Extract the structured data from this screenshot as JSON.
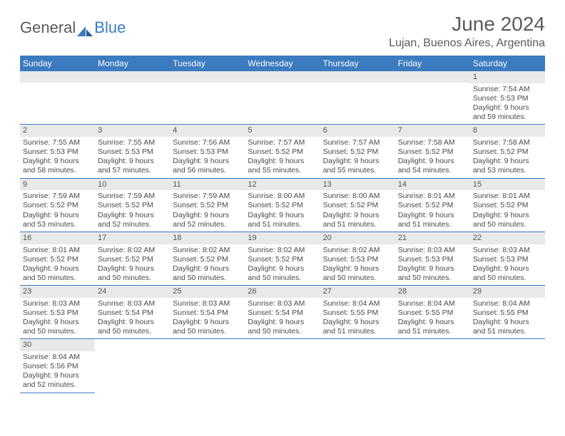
{
  "logo": {
    "text_a": "General",
    "text_b": "Blue"
  },
  "title": "June 2024",
  "location": "Lujan, Buenos Aires, Argentina",
  "colors": {
    "header_bg": "#3b7bbf",
    "header_text": "#ffffff",
    "daynum_bg": "#e8e9ea",
    "week_border": "#3b7bbf",
    "body_text": "#4a4a4a",
    "title_text": "#5a5a5a"
  },
  "weekdays": [
    "Sunday",
    "Monday",
    "Tuesday",
    "Wednesday",
    "Thursday",
    "Friday",
    "Saturday"
  ],
  "weeks": [
    [
      {
        "n": "",
        "sr": "",
        "ss": "",
        "dl": ""
      },
      {
        "n": "",
        "sr": "",
        "ss": "",
        "dl": ""
      },
      {
        "n": "",
        "sr": "",
        "ss": "",
        "dl": ""
      },
      {
        "n": "",
        "sr": "",
        "ss": "",
        "dl": ""
      },
      {
        "n": "",
        "sr": "",
        "ss": "",
        "dl": ""
      },
      {
        "n": "",
        "sr": "",
        "ss": "",
        "dl": ""
      },
      {
        "n": "1",
        "sr": "Sunrise: 7:54 AM",
        "ss": "Sunset: 5:53 PM",
        "dl": "Daylight: 9 hours and 59 minutes."
      }
    ],
    [
      {
        "n": "2",
        "sr": "Sunrise: 7:55 AM",
        "ss": "Sunset: 5:53 PM",
        "dl": "Daylight: 9 hours and 58 minutes."
      },
      {
        "n": "3",
        "sr": "Sunrise: 7:55 AM",
        "ss": "Sunset: 5:53 PM",
        "dl": "Daylight: 9 hours and 57 minutes."
      },
      {
        "n": "4",
        "sr": "Sunrise: 7:56 AM",
        "ss": "Sunset: 5:53 PM",
        "dl": "Daylight: 9 hours and 56 minutes."
      },
      {
        "n": "5",
        "sr": "Sunrise: 7:57 AM",
        "ss": "Sunset: 5:52 PM",
        "dl": "Daylight: 9 hours and 55 minutes."
      },
      {
        "n": "6",
        "sr": "Sunrise: 7:57 AM",
        "ss": "Sunset: 5:52 PM",
        "dl": "Daylight: 9 hours and 55 minutes."
      },
      {
        "n": "7",
        "sr": "Sunrise: 7:58 AM",
        "ss": "Sunset: 5:52 PM",
        "dl": "Daylight: 9 hours and 54 minutes."
      },
      {
        "n": "8",
        "sr": "Sunrise: 7:58 AM",
        "ss": "Sunset: 5:52 PM",
        "dl": "Daylight: 9 hours and 53 minutes."
      }
    ],
    [
      {
        "n": "9",
        "sr": "Sunrise: 7:59 AM",
        "ss": "Sunset: 5:52 PM",
        "dl": "Daylight: 9 hours and 53 minutes."
      },
      {
        "n": "10",
        "sr": "Sunrise: 7:59 AM",
        "ss": "Sunset: 5:52 PM",
        "dl": "Daylight: 9 hours and 52 minutes."
      },
      {
        "n": "11",
        "sr": "Sunrise: 7:59 AM",
        "ss": "Sunset: 5:52 PM",
        "dl": "Daylight: 9 hours and 52 minutes."
      },
      {
        "n": "12",
        "sr": "Sunrise: 8:00 AM",
        "ss": "Sunset: 5:52 PM",
        "dl": "Daylight: 9 hours and 51 minutes."
      },
      {
        "n": "13",
        "sr": "Sunrise: 8:00 AM",
        "ss": "Sunset: 5:52 PM",
        "dl": "Daylight: 9 hours and 51 minutes."
      },
      {
        "n": "14",
        "sr": "Sunrise: 8:01 AM",
        "ss": "Sunset: 5:52 PM",
        "dl": "Daylight: 9 hours and 51 minutes."
      },
      {
        "n": "15",
        "sr": "Sunrise: 8:01 AM",
        "ss": "Sunset: 5:52 PM",
        "dl": "Daylight: 9 hours and 50 minutes."
      }
    ],
    [
      {
        "n": "16",
        "sr": "Sunrise: 8:01 AM",
        "ss": "Sunset: 5:52 PM",
        "dl": "Daylight: 9 hours and 50 minutes."
      },
      {
        "n": "17",
        "sr": "Sunrise: 8:02 AM",
        "ss": "Sunset: 5:52 PM",
        "dl": "Daylight: 9 hours and 50 minutes."
      },
      {
        "n": "18",
        "sr": "Sunrise: 8:02 AM",
        "ss": "Sunset: 5:52 PM",
        "dl": "Daylight: 9 hours and 50 minutes."
      },
      {
        "n": "19",
        "sr": "Sunrise: 8:02 AM",
        "ss": "Sunset: 5:52 PM",
        "dl": "Daylight: 9 hours and 50 minutes."
      },
      {
        "n": "20",
        "sr": "Sunrise: 8:02 AM",
        "ss": "Sunset: 5:53 PM",
        "dl": "Daylight: 9 hours and 50 minutes."
      },
      {
        "n": "21",
        "sr": "Sunrise: 8:03 AM",
        "ss": "Sunset: 5:53 PM",
        "dl": "Daylight: 9 hours and 50 minutes."
      },
      {
        "n": "22",
        "sr": "Sunrise: 8:03 AM",
        "ss": "Sunset: 5:53 PM",
        "dl": "Daylight: 9 hours and 50 minutes."
      }
    ],
    [
      {
        "n": "23",
        "sr": "Sunrise: 8:03 AM",
        "ss": "Sunset: 5:53 PM",
        "dl": "Daylight: 9 hours and 50 minutes."
      },
      {
        "n": "24",
        "sr": "Sunrise: 8:03 AM",
        "ss": "Sunset: 5:54 PM",
        "dl": "Daylight: 9 hours and 50 minutes."
      },
      {
        "n": "25",
        "sr": "Sunrise: 8:03 AM",
        "ss": "Sunset: 5:54 PM",
        "dl": "Daylight: 9 hours and 50 minutes."
      },
      {
        "n": "26",
        "sr": "Sunrise: 8:03 AM",
        "ss": "Sunset: 5:54 PM",
        "dl": "Daylight: 9 hours and 50 minutes."
      },
      {
        "n": "27",
        "sr": "Sunrise: 8:04 AM",
        "ss": "Sunset: 5:55 PM",
        "dl": "Daylight: 9 hours and 51 minutes."
      },
      {
        "n": "28",
        "sr": "Sunrise: 8:04 AM",
        "ss": "Sunset: 5:55 PM",
        "dl": "Daylight: 9 hours and 51 minutes."
      },
      {
        "n": "29",
        "sr": "Sunrise: 8:04 AM",
        "ss": "Sunset: 5:55 PM",
        "dl": "Daylight: 9 hours and 51 minutes."
      }
    ],
    [
      {
        "n": "30",
        "sr": "Sunrise: 8:04 AM",
        "ss": "Sunset: 5:56 PM",
        "dl": "Daylight: 9 hours and 52 minutes."
      },
      {
        "n": "",
        "sr": "",
        "ss": "",
        "dl": ""
      },
      {
        "n": "",
        "sr": "",
        "ss": "",
        "dl": ""
      },
      {
        "n": "",
        "sr": "",
        "ss": "",
        "dl": ""
      },
      {
        "n": "",
        "sr": "",
        "ss": "",
        "dl": ""
      },
      {
        "n": "",
        "sr": "",
        "ss": "",
        "dl": ""
      },
      {
        "n": "",
        "sr": "",
        "ss": "",
        "dl": ""
      }
    ]
  ]
}
